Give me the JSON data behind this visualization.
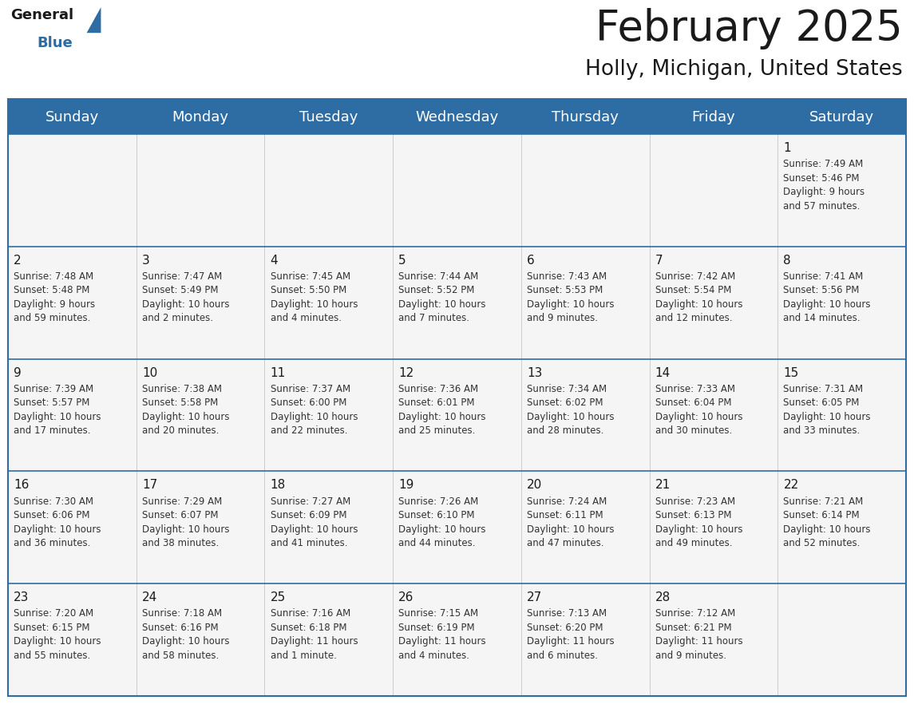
{
  "title": "February 2025",
  "subtitle": "Holly, Michigan, United States",
  "header_bg": "#2E6DA4",
  "header_text": "#FFFFFF",
  "cell_bg": "#F5F5F5",
  "text_color": "#1a1a1a",
  "cell_text_color": "#333333",
  "divider_color": "#cccccc",
  "day_headers": [
    "Sunday",
    "Monday",
    "Tuesday",
    "Wednesday",
    "Thursday",
    "Friday",
    "Saturday"
  ],
  "title_fontsize": 38,
  "subtitle_fontsize": 19,
  "header_fontsize": 13,
  "day_num_fontsize": 11,
  "cell_fontsize": 8.5,
  "calendar": [
    [
      null,
      null,
      null,
      null,
      null,
      null,
      {
        "day": 1,
        "sunrise": "7:49 AM",
        "sunset": "5:46 PM",
        "daylight": "9 hours\nand 57 minutes."
      }
    ],
    [
      {
        "day": 2,
        "sunrise": "7:48 AM",
        "sunset": "5:48 PM",
        "daylight": "9 hours\nand 59 minutes."
      },
      {
        "day": 3,
        "sunrise": "7:47 AM",
        "sunset": "5:49 PM",
        "daylight": "10 hours\nand 2 minutes."
      },
      {
        "day": 4,
        "sunrise": "7:45 AM",
        "sunset": "5:50 PM",
        "daylight": "10 hours\nand 4 minutes."
      },
      {
        "day": 5,
        "sunrise": "7:44 AM",
        "sunset": "5:52 PM",
        "daylight": "10 hours\nand 7 minutes."
      },
      {
        "day": 6,
        "sunrise": "7:43 AM",
        "sunset": "5:53 PM",
        "daylight": "10 hours\nand 9 minutes."
      },
      {
        "day": 7,
        "sunrise": "7:42 AM",
        "sunset": "5:54 PM",
        "daylight": "10 hours\nand 12 minutes."
      },
      {
        "day": 8,
        "sunrise": "7:41 AM",
        "sunset": "5:56 PM",
        "daylight": "10 hours\nand 14 minutes."
      }
    ],
    [
      {
        "day": 9,
        "sunrise": "7:39 AM",
        "sunset": "5:57 PM",
        "daylight": "10 hours\nand 17 minutes."
      },
      {
        "day": 10,
        "sunrise": "7:38 AM",
        "sunset": "5:58 PM",
        "daylight": "10 hours\nand 20 minutes."
      },
      {
        "day": 11,
        "sunrise": "7:37 AM",
        "sunset": "6:00 PM",
        "daylight": "10 hours\nand 22 minutes."
      },
      {
        "day": 12,
        "sunrise": "7:36 AM",
        "sunset": "6:01 PM",
        "daylight": "10 hours\nand 25 minutes."
      },
      {
        "day": 13,
        "sunrise": "7:34 AM",
        "sunset": "6:02 PM",
        "daylight": "10 hours\nand 28 minutes."
      },
      {
        "day": 14,
        "sunrise": "7:33 AM",
        "sunset": "6:04 PM",
        "daylight": "10 hours\nand 30 minutes."
      },
      {
        "day": 15,
        "sunrise": "7:31 AM",
        "sunset": "6:05 PM",
        "daylight": "10 hours\nand 33 minutes."
      }
    ],
    [
      {
        "day": 16,
        "sunrise": "7:30 AM",
        "sunset": "6:06 PM",
        "daylight": "10 hours\nand 36 minutes."
      },
      {
        "day": 17,
        "sunrise": "7:29 AM",
        "sunset": "6:07 PM",
        "daylight": "10 hours\nand 38 minutes."
      },
      {
        "day": 18,
        "sunrise": "7:27 AM",
        "sunset": "6:09 PM",
        "daylight": "10 hours\nand 41 minutes."
      },
      {
        "day": 19,
        "sunrise": "7:26 AM",
        "sunset": "6:10 PM",
        "daylight": "10 hours\nand 44 minutes."
      },
      {
        "day": 20,
        "sunrise": "7:24 AM",
        "sunset": "6:11 PM",
        "daylight": "10 hours\nand 47 minutes."
      },
      {
        "day": 21,
        "sunrise": "7:23 AM",
        "sunset": "6:13 PM",
        "daylight": "10 hours\nand 49 minutes."
      },
      {
        "day": 22,
        "sunrise": "7:21 AM",
        "sunset": "6:14 PM",
        "daylight": "10 hours\nand 52 minutes."
      }
    ],
    [
      {
        "day": 23,
        "sunrise": "7:20 AM",
        "sunset": "6:15 PM",
        "daylight": "10 hours\nand 55 minutes."
      },
      {
        "day": 24,
        "sunrise": "7:18 AM",
        "sunset": "6:16 PM",
        "daylight": "10 hours\nand 58 minutes."
      },
      {
        "day": 25,
        "sunrise": "7:16 AM",
        "sunset": "6:18 PM",
        "daylight": "11 hours\nand 1 minute."
      },
      {
        "day": 26,
        "sunrise": "7:15 AM",
        "sunset": "6:19 PM",
        "daylight": "11 hours\nand 4 minutes."
      },
      {
        "day": 27,
        "sunrise": "7:13 AM",
        "sunset": "6:20 PM",
        "daylight": "11 hours\nand 6 minutes."
      },
      {
        "day": 28,
        "sunrise": "7:12 AM",
        "sunset": "6:21 PM",
        "daylight": "11 hours\nand 9 minutes."
      },
      null
    ]
  ]
}
